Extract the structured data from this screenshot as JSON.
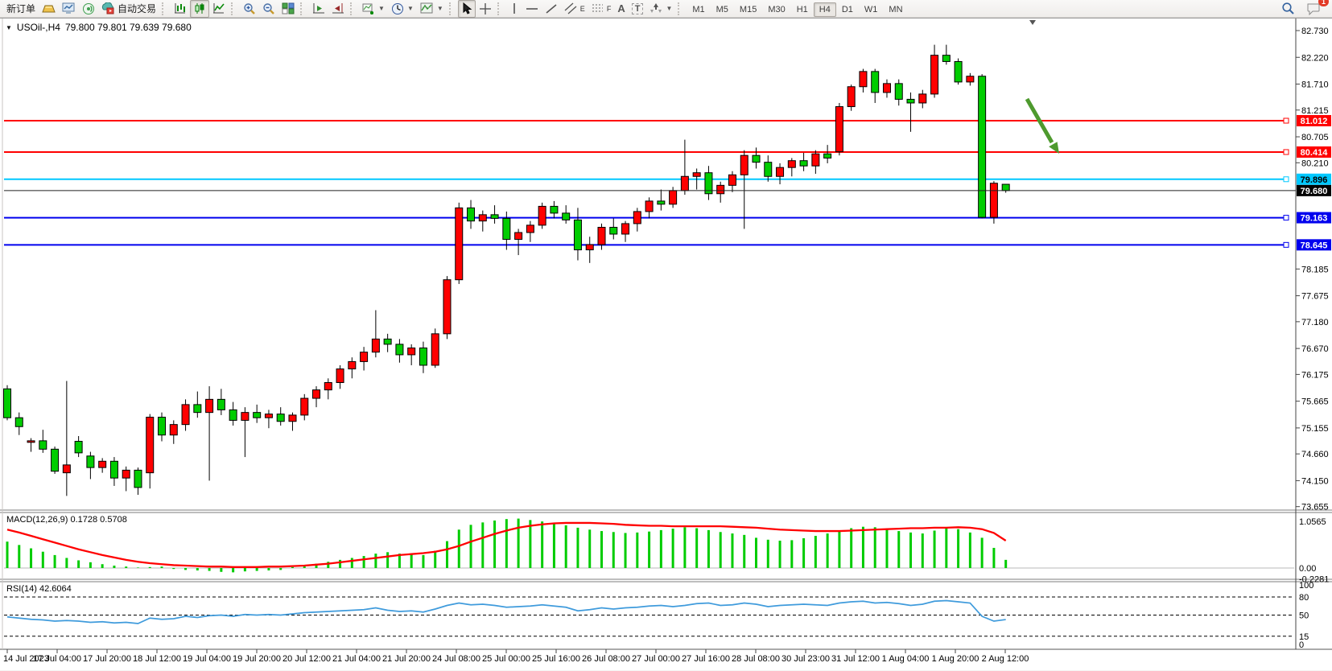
{
  "toolbar": {
    "new_order_label": "新订单",
    "autotrading_label": "自动交易",
    "glyph_text_tool": "A",
    "glyph_textlabel_tool": "T",
    "glyph_channel": "E",
    "glyph_fibo": "F",
    "timeframes": [
      "M1",
      "M5",
      "M15",
      "M30",
      "H1",
      "H4",
      "D1",
      "W1",
      "MN"
    ],
    "active_timeframe": "H4",
    "chat_badge_count": "1"
  },
  "chart": {
    "title_symbol": "USOil-,H4",
    "title_ohlc": "79.800 79.801 79.639 79.680",
    "macd_label": "MACD(12,26,9) 0.1728 0.5708",
    "rsi_label": "RSI(14) 42.6064"
  },
  "chart_data": [
    {
      "type": "candlestick",
      "name": "USOil H4 price pane",
      "symbol": "USOil-",
      "timeframe": "H4",
      "current_bar": {
        "open": 79.8,
        "high": 79.801,
        "low": 79.639,
        "close": 79.68
      },
      "ylim": [
        73.655,
        82.73
      ],
      "bull_color": "#ff0000",
      "bear_color": "#00cd00",
      "note": "Chinese color convention: red = up, green = down",
      "y_ticks": [
        "82.730",
        "82.220",
        "81.710",
        "81.215",
        "80.705",
        "80.210",
        "78.185",
        "77.675",
        "77.180",
        "76.670",
        "76.175",
        "75.665",
        "75.155",
        "74.660",
        "74.150",
        "73.655"
      ],
      "x_labels": [
        "14 Jul 2023",
        "17 Jul 04:00",
        "17 Jul 20:00",
        "18 Jul 12:00",
        "19 Jul 04:00",
        "19 Jul 20:00",
        "20 Jul 12:00",
        "21 Jul 04:00",
        "21 Jul 20:00",
        "24 Jul 08:00",
        "25 Jul 00:00",
        "25 Jul 16:00",
        "26 Jul 08:00",
        "27 Jul 00:00",
        "27 Jul 16:00",
        "28 Jul 08:00",
        "30 Jul 23:00",
        "31 Jul 12:00",
        "1 Aug 04:00",
        "1 Aug 20:00",
        "2 Aug 12:00"
      ],
      "levels": [
        {
          "price": 81.012,
          "label": "81.012",
          "color": "#ff0000",
          "label_text_color": "#ffffff"
        },
        {
          "price": 80.414,
          "label": "80.414",
          "color": "#ff0000",
          "label_text_color": "#ffffff"
        },
        {
          "price": 79.896,
          "label": "79.896",
          "color": "#00c8ff",
          "label_text_color": "#000000"
        },
        {
          "price": 79.163,
          "label": "79.163",
          "color": "#0000ee",
          "label_text_color": "#ffffff"
        },
        {
          "price": 78.645,
          "label": "78.645",
          "color": "#0000ee",
          "label_text_color": "#ffffff"
        }
      ],
      "current_price": {
        "value": 79.68,
        "label": "79.680",
        "line_color": "#222222",
        "badge_color": "#000000",
        "label_text_color": "#ffffff"
      },
      "annotation_arrow": {
        "color": "#4e9a2e",
        "direction": "down-right",
        "near_price_from": 81.35,
        "near_price_to": 80.45
      },
      "candles": [
        [
          75.9,
          75.97,
          75.3,
          75.35
        ],
        [
          75.35,
          75.45,
          75.02,
          75.18
        ],
        [
          74.88,
          74.96,
          74.7,
          74.91
        ],
        [
          74.91,
          75.12,
          74.68,
          74.75
        ],
        [
          74.75,
          74.8,
          74.28,
          74.33
        ],
        [
          74.3,
          76.05,
          73.86,
          74.45
        ],
        [
          74.9,
          75.0,
          74.6,
          74.68
        ],
        [
          74.62,
          74.7,
          74.18,
          74.4
        ],
        [
          74.4,
          74.58,
          74.3,
          74.52
        ],
        [
          74.52,
          74.6,
          74.05,
          74.2
        ],
        [
          74.2,
          74.42,
          73.95,
          74.35
        ],
        [
          74.35,
          74.4,
          73.88,
          74.02
        ],
        [
          74.3,
          75.42,
          74.0,
          75.36
        ],
        [
          75.36,
          75.45,
          74.9,
          75.02
        ],
        [
          75.02,
          75.3,
          74.85,
          75.22
        ],
        [
          75.22,
          75.7,
          75.1,
          75.6
        ],
        [
          75.6,
          75.85,
          75.35,
          75.45
        ],
        [
          75.45,
          75.95,
          74.15,
          75.7
        ],
        [
          75.7,
          75.9,
          75.4,
          75.5
        ],
        [
          75.5,
          75.65,
          75.2,
          75.3
        ],
        [
          75.3,
          75.55,
          74.6,
          75.45
        ],
        [
          75.45,
          75.6,
          75.25,
          75.35
        ],
        [
          75.35,
          75.5,
          75.15,
          75.42
        ],
        [
          75.42,
          75.55,
          75.2,
          75.28
        ],
        [
          75.28,
          75.45,
          75.1,
          75.4
        ],
        [
          75.4,
          75.8,
          75.3,
          75.72
        ],
        [
          75.72,
          75.95,
          75.55,
          75.88
        ],
        [
          75.88,
          76.1,
          75.7,
          76.02
        ],
        [
          76.02,
          76.35,
          75.9,
          76.28
        ],
        [
          76.28,
          76.5,
          76.1,
          76.42
        ],
        [
          76.42,
          76.7,
          76.25,
          76.6
        ],
        [
          76.6,
          77.4,
          76.5,
          76.85
        ],
        [
          76.85,
          76.95,
          76.6,
          76.75
        ],
        [
          76.75,
          76.85,
          76.4,
          76.55
        ],
        [
          76.55,
          76.75,
          76.35,
          76.68
        ],
        [
          76.68,
          76.8,
          76.2,
          76.35
        ],
        [
          76.35,
          77.05,
          76.3,
          76.95
        ],
        [
          76.95,
          78.05,
          76.85,
          77.98
        ],
        [
          77.98,
          79.45,
          77.9,
          79.35
        ],
        [
          79.35,
          79.5,
          78.95,
          79.1
        ],
        [
          79.1,
          79.3,
          78.9,
          79.22
        ],
        [
          79.22,
          79.4,
          79.05,
          79.15
        ],
        [
          79.15,
          79.28,
          78.55,
          78.75
        ],
        [
          78.75,
          78.95,
          78.45,
          78.88
        ],
        [
          78.88,
          79.1,
          78.7,
          79.02
        ],
        [
          79.02,
          79.45,
          78.95,
          79.38
        ],
        [
          79.38,
          79.48,
          79.15,
          79.25
        ],
        [
          79.25,
          79.4,
          79.05,
          79.12
        ],
        [
          79.12,
          79.35,
          78.35,
          78.55
        ],
        [
          78.55,
          78.8,
          78.3,
          78.65
        ],
        [
          78.65,
          79.05,
          78.55,
          78.98
        ],
        [
          78.98,
          79.15,
          78.75,
          78.85
        ],
        [
          78.85,
          79.1,
          78.7,
          79.05
        ],
        [
          79.05,
          79.35,
          78.9,
          79.28
        ],
        [
          79.28,
          79.55,
          79.15,
          79.48
        ],
        [
          79.48,
          79.7,
          79.3,
          79.42
        ],
        [
          79.42,
          79.75,
          79.35,
          79.68
        ],
        [
          79.68,
          80.65,
          79.6,
          79.95
        ],
        [
          79.95,
          80.1,
          79.7,
          80.02
        ],
        [
          80.02,
          80.15,
          79.5,
          79.62
        ],
        [
          79.62,
          79.85,
          79.45,
          79.78
        ],
        [
          79.78,
          80.05,
          79.65,
          79.98
        ],
        [
          79.98,
          80.45,
          78.95,
          80.35
        ],
        [
          80.35,
          80.5,
          80.1,
          80.22
        ],
        [
          80.22,
          80.35,
          79.85,
          79.95
        ],
        [
          79.95,
          80.2,
          79.8,
          80.12
        ],
        [
          80.12,
          80.3,
          79.95,
          80.25
        ],
        [
          80.25,
          80.4,
          80.05,
          80.15
        ],
        [
          80.15,
          80.45,
          80.0,
          80.38
        ],
        [
          80.38,
          80.55,
          80.2,
          80.3
        ],
        [
          80.42,
          81.35,
          80.35,
          81.28
        ],
        [
          81.28,
          81.7,
          81.2,
          81.66
        ],
        [
          81.66,
          82.0,
          81.55,
          81.95
        ],
        [
          81.95,
          82.0,
          81.35,
          81.55
        ],
        [
          81.55,
          81.8,
          81.45,
          81.72
        ],
        [
          81.72,
          81.8,
          81.3,
          81.42
        ],
        [
          81.42,
          81.55,
          80.8,
          81.35
        ],
        [
          81.35,
          81.6,
          81.25,
          81.52
        ],
        [
          81.52,
          82.46,
          81.45,
          82.26
        ],
        [
          82.26,
          82.46,
          82.08,
          82.14
        ],
        [
          82.14,
          82.2,
          81.7,
          81.75
        ],
        [
          81.75,
          81.92,
          81.68,
          81.86
        ],
        [
          81.86,
          81.9,
          79.15,
          79.17
        ],
        [
          79.17,
          79.86,
          79.05,
          79.82
        ],
        [
          79.8,
          79.801,
          79.639,
          79.68
        ]
      ]
    },
    {
      "type": "bar",
      "name": "MACD",
      "label": "MACD(12,26,9) 0.1728 0.5708",
      "params": "12,26,9",
      "current_main": 0.1728,
      "current_signal": 0.5708,
      "ylim": [
        -0.2281,
        1.0565
      ],
      "y_ticks": [
        "1.0565",
        "0.00",
        "-0.2281"
      ],
      "histogram_color": "#00cc00",
      "signal_color": "#ff0000",
      "histogram": [
        0.55,
        0.48,
        0.41,
        0.34,
        0.27,
        0.21,
        0.16,
        0.12,
        0.08,
        0.05,
        0.03,
        0.01,
        0.02,
        0.03,
        -0.02,
        -0.04,
        -0.05,
        -0.06,
        -0.08,
        -0.09,
        -0.07,
        -0.06,
        -0.05,
        -0.04,
        0.02,
        0.05,
        0.09,
        0.13,
        0.17,
        0.21,
        0.25,
        0.3,
        0.33,
        0.3,
        0.28,
        0.27,
        0.36,
        0.56,
        0.8,
        0.9,
        0.95,
        0.99,
        1.02,
        1.03,
        1.0,
        0.97,
        0.93,
        0.89,
        0.84,
        0.8,
        0.77,
        0.75,
        0.73,
        0.74,
        0.76,
        0.79,
        0.82,
        0.85,
        0.83,
        0.79,
        0.75,
        0.72,
        0.69,
        0.63,
        0.59,
        0.57,
        0.58,
        0.62,
        0.67,
        0.72,
        0.78,
        0.83,
        0.86,
        0.85,
        0.81,
        0.77,
        0.74,
        0.72,
        0.78,
        0.83,
        0.81,
        0.74,
        0.63,
        0.42,
        0.17
      ],
      "signal": [
        0.8,
        0.74,
        0.67,
        0.6,
        0.53,
        0.46,
        0.39,
        0.33,
        0.27,
        0.22,
        0.17,
        0.13,
        0.1,
        0.08,
        0.06,
        0.05,
        0.04,
        0.03,
        0.03,
        0.02,
        0.02,
        0.02,
        0.03,
        0.03,
        0.04,
        0.05,
        0.07,
        0.09,
        0.12,
        0.15,
        0.18,
        0.21,
        0.24,
        0.27,
        0.29,
        0.31,
        0.34,
        0.39,
        0.46,
        0.55,
        0.63,
        0.71,
        0.78,
        0.84,
        0.88,
        0.91,
        0.93,
        0.94,
        0.94,
        0.94,
        0.93,
        0.92,
        0.9,
        0.89,
        0.88,
        0.88,
        0.87,
        0.87,
        0.87,
        0.87,
        0.87,
        0.86,
        0.85,
        0.84,
        0.82,
        0.8,
        0.79,
        0.78,
        0.77,
        0.77,
        0.77,
        0.78,
        0.79,
        0.8,
        0.81,
        0.82,
        0.83,
        0.83,
        0.84,
        0.84,
        0.85,
        0.84,
        0.81,
        0.73,
        0.57
      ]
    },
    {
      "type": "line",
      "name": "RSI",
      "label": "RSI(14) 42.6064",
      "period": 14,
      "current": 42.6064,
      "ylim": [
        0,
        100
      ],
      "y_ticks": [
        "100",
        "80",
        "50",
        "15",
        "0"
      ],
      "dashed_levels": [
        80,
        50,
        15
      ],
      "line_color": "#3f9bdc",
      "values": [
        47,
        45,
        43,
        42,
        40,
        41,
        40,
        38,
        39,
        37,
        38,
        36,
        45,
        43,
        44,
        48,
        46,
        49,
        50,
        48,
        51,
        50,
        51,
        50,
        52,
        54,
        55,
        56,
        57,
        58,
        59,
        62,
        58,
        56,
        57,
        55,
        60,
        66,
        70,
        67,
        68,
        66,
        63,
        64,
        65,
        67,
        65,
        63,
        57,
        59,
        62,
        60,
        62,
        63,
        65,
        66,
        64,
        66,
        69,
        70,
        66,
        67,
        70,
        68,
        64,
        66,
        67,
        68,
        67,
        66,
        70,
        72,
        73,
        70,
        71,
        69,
        66,
        68,
        73,
        74,
        72,
        70,
        48,
        40,
        42.6
      ]
    }
  ]
}
